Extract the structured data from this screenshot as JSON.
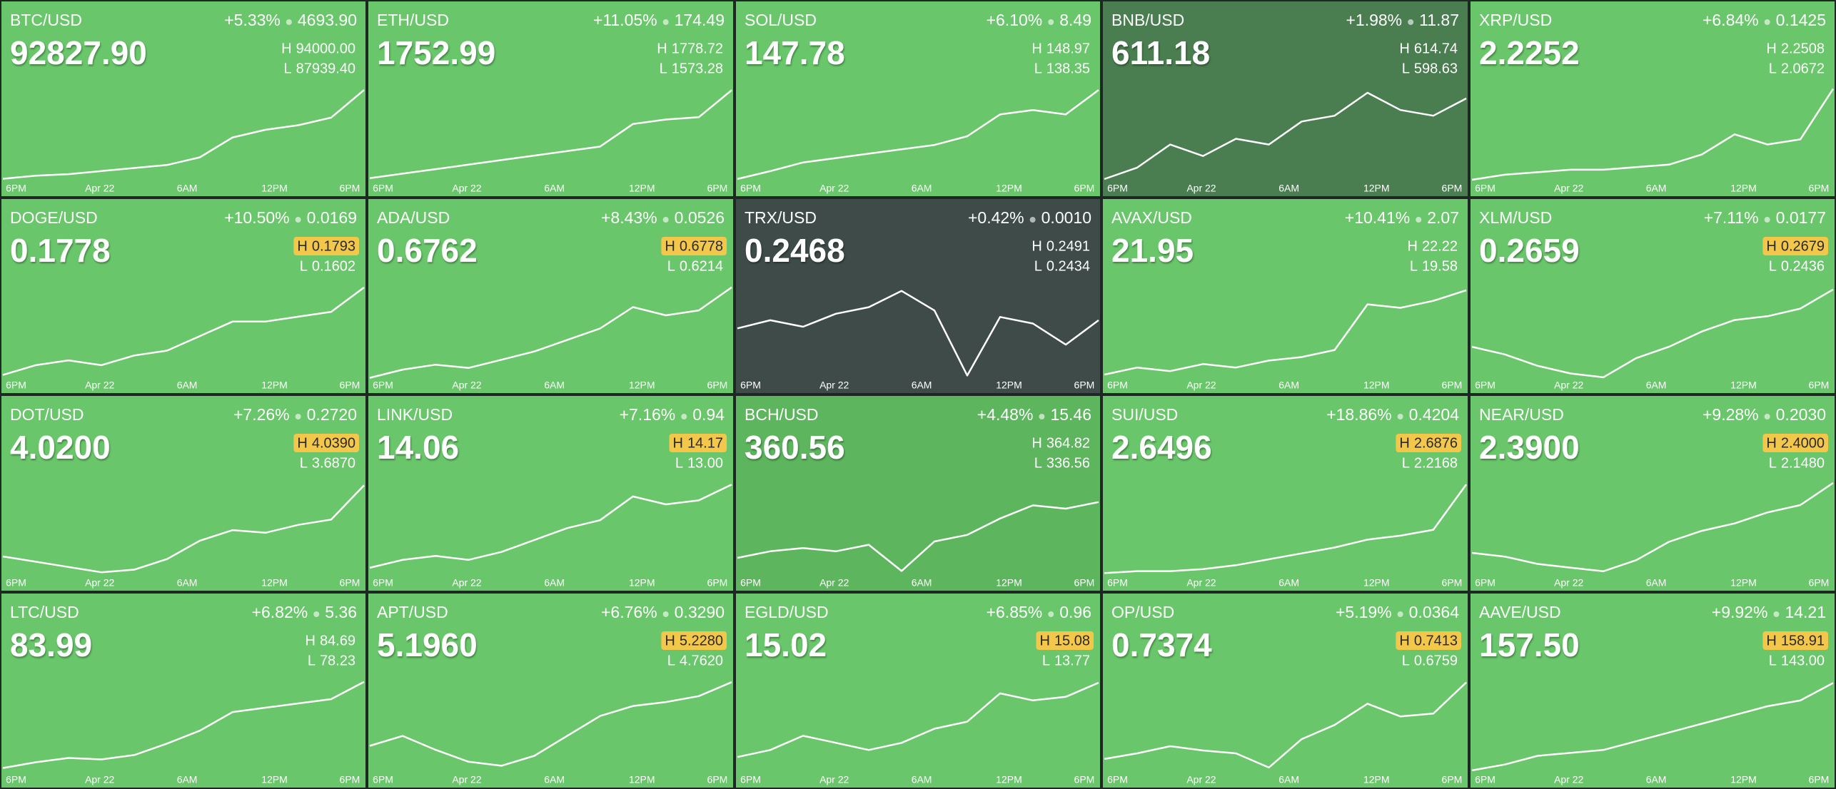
{
  "high_label": "H",
  "low_label": "L",
  "time_labels": [
    "6PM",
    "Apr 22",
    "6AM",
    "12PM",
    "6PM"
  ],
  "tiles": [
    {
      "pair": "BTC/USD",
      "change": "+5.33%",
      "delta": "4693.90",
      "price": "92827.90",
      "high": "94000.00",
      "low": "87939.40",
      "high_alert": false,
      "color": "#69c66a",
      "spark": [
        88100,
        88300,
        88400,
        88600,
        88800,
        89000,
        89500,
        90800,
        91300,
        91600,
        92100,
        93900
      ]
    },
    {
      "pair": "ETH/USD",
      "change": "+11.05%",
      "delta": "174.49",
      "price": "1752.99",
      "high": "1778.72",
      "low": "1573.28",
      "high_alert": false,
      "color": "#69c66a",
      "spark": [
        1580,
        1590,
        1600,
        1610,
        1620,
        1630,
        1640,
        1650,
        1700,
        1710,
        1715,
        1775
      ]
    },
    {
      "pair": "SOL/USD",
      "change": "+6.10%",
      "delta": "8.49",
      "price": "147.78",
      "high": "148.97",
      "low": "138.35",
      "high_alert": false,
      "color": "#69c66a",
      "spark": [
        138.6,
        139.5,
        140.5,
        141,
        141.5,
        142,
        142.5,
        143.5,
        146,
        146.5,
        146,
        148.8
      ]
    },
    {
      "pair": "BNB/USD",
      "change": "+1.98%",
      "delta": "11.87",
      "price": "611.18",
      "high": "614.74",
      "low": "598.63",
      "high_alert": false,
      "color": "#4a7d4f",
      "spark": [
        599,
        601,
        605,
        603,
        606,
        605,
        609,
        610,
        614,
        611,
        610,
        613
      ]
    },
    {
      "pair": "XRP/USD",
      "change": "+6.84%",
      "delta": "0.1425",
      "price": "2.2252",
      "high": "2.2508",
      "low": "2.0672",
      "high_alert": false,
      "color": "#69c66a",
      "spark": [
        2.07,
        2.08,
        2.085,
        2.09,
        2.09,
        2.095,
        2.1,
        2.12,
        2.16,
        2.14,
        2.15,
        2.25
      ]
    },
    {
      "pair": "DOGE/USD",
      "change": "+10.50%",
      "delta": "0.0169",
      "price": "0.1778",
      "high": "0.1793",
      "low": "0.1602",
      "high_alert": true,
      "color": "#69c66a",
      "spark": [
        0.161,
        0.163,
        0.164,
        0.163,
        0.165,
        0.166,
        0.169,
        0.172,
        0.172,
        0.173,
        0.174,
        0.179
      ]
    },
    {
      "pair": "ADA/USD",
      "change": "+8.43%",
      "delta": "0.0526",
      "price": "0.6762",
      "high": "0.6778",
      "low": "0.6214",
      "high_alert": true,
      "color": "#69c66a",
      "spark": [
        0.622,
        0.627,
        0.63,
        0.628,
        0.633,
        0.638,
        0.645,
        0.652,
        0.665,
        0.66,
        0.663,
        0.677
      ]
    },
    {
      "pair": "TRX/USD",
      "change": "+0.42%",
      "delta": "0.0010",
      "price": "0.2468",
      "high": "0.2491",
      "low": "0.2434",
      "high_alert": false,
      "color": "#3e4b48",
      "spark": [
        0.2465,
        0.247,
        0.2466,
        0.2474,
        0.2478,
        0.2488,
        0.2476,
        0.2436,
        0.2472,
        0.2468,
        0.2455,
        0.247
      ]
    },
    {
      "pair": "AVAX/USD",
      "change": "+10.41%",
      "delta": "2.07",
      "price": "21.95",
      "high": "22.22",
      "low": "19.58",
      "high_alert": false,
      "color": "#69c66a",
      "spark": [
        19.7,
        19.9,
        19.8,
        20,
        19.9,
        20.1,
        20.2,
        20.4,
        21.7,
        21.6,
        21.8,
        22.1
      ]
    },
    {
      "pair": "XLM/USD",
      "change": "+7.11%",
      "delta": "0.0177",
      "price": "0.2659",
      "high": "0.2679",
      "low": "0.2436",
      "high_alert": true,
      "color": "#69c66a",
      "spark": [
        0.252,
        0.25,
        0.247,
        0.245,
        0.244,
        0.249,
        0.252,
        0.256,
        0.259,
        0.26,
        0.262,
        0.267
      ]
    },
    {
      "pair": "DOT/USD",
      "change": "+7.26%",
      "delta": "0.2720",
      "price": "4.0200",
      "high": "4.0390",
      "low": "3.6870",
      "high_alert": true,
      "color": "#69c66a",
      "spark": [
        3.76,
        3.74,
        3.72,
        3.7,
        3.71,
        3.75,
        3.82,
        3.86,
        3.85,
        3.88,
        3.9,
        4.03
      ]
    },
    {
      "pair": "LINK/USD",
      "change": "+7.16%",
      "delta": "0.94",
      "price": "14.06",
      "high": "14.17",
      "low": "13.00",
      "high_alert": true,
      "color": "#69c66a",
      "spark": [
        13.1,
        13.2,
        13.25,
        13.2,
        13.3,
        13.45,
        13.6,
        13.7,
        14,
        13.9,
        13.95,
        14.15
      ]
    },
    {
      "pair": "BCH/USD",
      "change": "+4.48%",
      "delta": "15.46",
      "price": "360.56",
      "high": "364.82",
      "low": "336.56",
      "high_alert": false,
      "color": "#5db55e",
      "spark": [
        342,
        344,
        345,
        344,
        346,
        338,
        347,
        349,
        354,
        358,
        357,
        359
      ]
    },
    {
      "pair": "SUI/USD",
      "change": "+18.86%",
      "delta": "0.4204",
      "price": "2.6496",
      "high": "2.6876",
      "low": "2.2168",
      "high_alert": true,
      "color": "#69c66a",
      "spark": [
        2.23,
        2.24,
        2.24,
        2.25,
        2.27,
        2.3,
        2.33,
        2.36,
        2.4,
        2.42,
        2.45,
        2.68
      ]
    },
    {
      "pair": "NEAR/USD",
      "change": "+9.28%",
      "delta": "0.2030",
      "price": "2.3900",
      "high": "2.4000",
      "low": "2.1480",
      "high_alert": true,
      "color": "#69c66a",
      "spark": [
        2.21,
        2.2,
        2.18,
        2.17,
        2.16,
        2.19,
        2.24,
        2.27,
        2.29,
        2.32,
        2.34,
        2.4
      ]
    },
    {
      "pair": "LTC/USD",
      "change": "+6.82%",
      "delta": "5.36",
      "price": "83.99",
      "high": "84.69",
      "low": "78.23",
      "high_alert": false,
      "color": "#69c66a",
      "spark": [
        78.6,
        79,
        79.3,
        79.2,
        79.5,
        80.3,
        81.2,
        82.5,
        82.8,
        83.1,
        83.4,
        84.6
      ]
    },
    {
      "pair": "APT/USD",
      "change": "+6.76%",
      "delta": "0.3290",
      "price": "5.1960",
      "high": "5.2280",
      "low": "4.7620",
      "high_alert": true,
      "color": "#69c66a",
      "spark": [
        4.9,
        4.95,
        4.88,
        4.82,
        4.8,
        4.85,
        4.95,
        5.05,
        5.1,
        5.12,
        5.15,
        5.22
      ]
    },
    {
      "pair": "EGLD/USD",
      "change": "+6.85%",
      "delta": "0.96",
      "price": "15.02",
      "high": "15.08",
      "low": "13.77",
      "high_alert": true,
      "color": "#69c66a",
      "spark": [
        14,
        14.1,
        14.3,
        14.2,
        14.1,
        14.2,
        14.4,
        14.5,
        14.9,
        14.8,
        14.85,
        15.05
      ]
    },
    {
      "pair": "OP/USD",
      "change": "+5.19%",
      "delta": "0.0364",
      "price": "0.7374",
      "high": "0.7413",
      "low": "0.6759",
      "high_alert": true,
      "color": "#69c66a",
      "spark": [
        0.686,
        0.69,
        0.695,
        0.692,
        0.69,
        0.68,
        0.7,
        0.71,
        0.725,
        0.716,
        0.718,
        0.74
      ]
    },
    {
      "pair": "AAVE/USD",
      "change": "+9.92%",
      "delta": "14.21",
      "price": "157.50",
      "high": "158.91",
      "low": "143.00",
      "high_alert": true,
      "color": "#69c66a",
      "spark": [
        143.5,
        144.5,
        146,
        146.5,
        147,
        148.5,
        150,
        151.5,
        153,
        154.5,
        155.5,
        158.5
      ]
    }
  ]
}
